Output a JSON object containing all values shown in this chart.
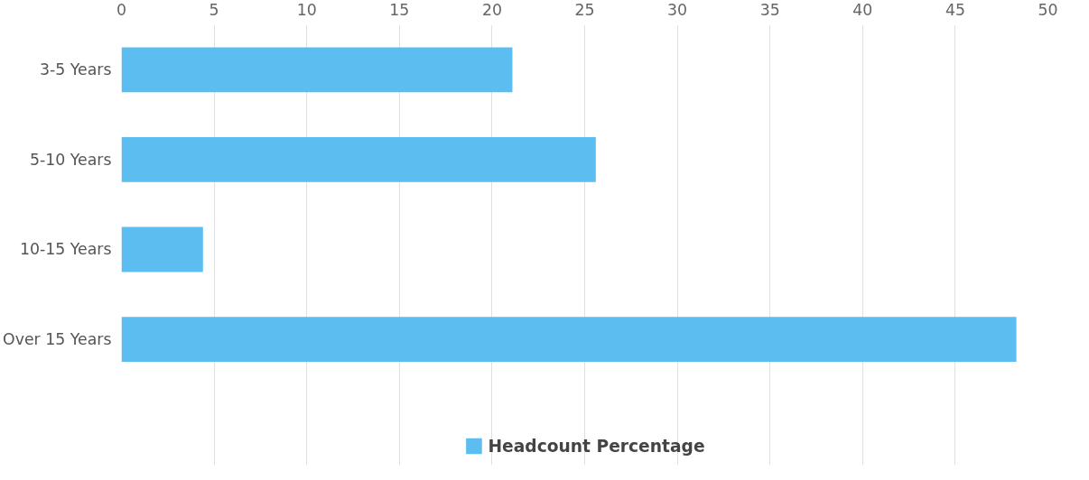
{
  "chart_data": {
    "type": "bar",
    "orientation": "horizontal",
    "categories": [
      "3-5 Years",
      "5-10 Years",
      "10-15 Years",
      "Over 15 Years"
    ],
    "series": [
      {
        "name": "Headcount Percentage",
        "color": "#5bbdf0",
        "values": [
          21.1,
          25.6,
          4.4,
          48.3
        ]
      }
    ],
    "xlim": [
      0,
      50
    ],
    "xticks": [
      0,
      5,
      10,
      15,
      20,
      25,
      30,
      35,
      40,
      45,
      50
    ],
    "grid": "x",
    "legend": "bottom"
  }
}
